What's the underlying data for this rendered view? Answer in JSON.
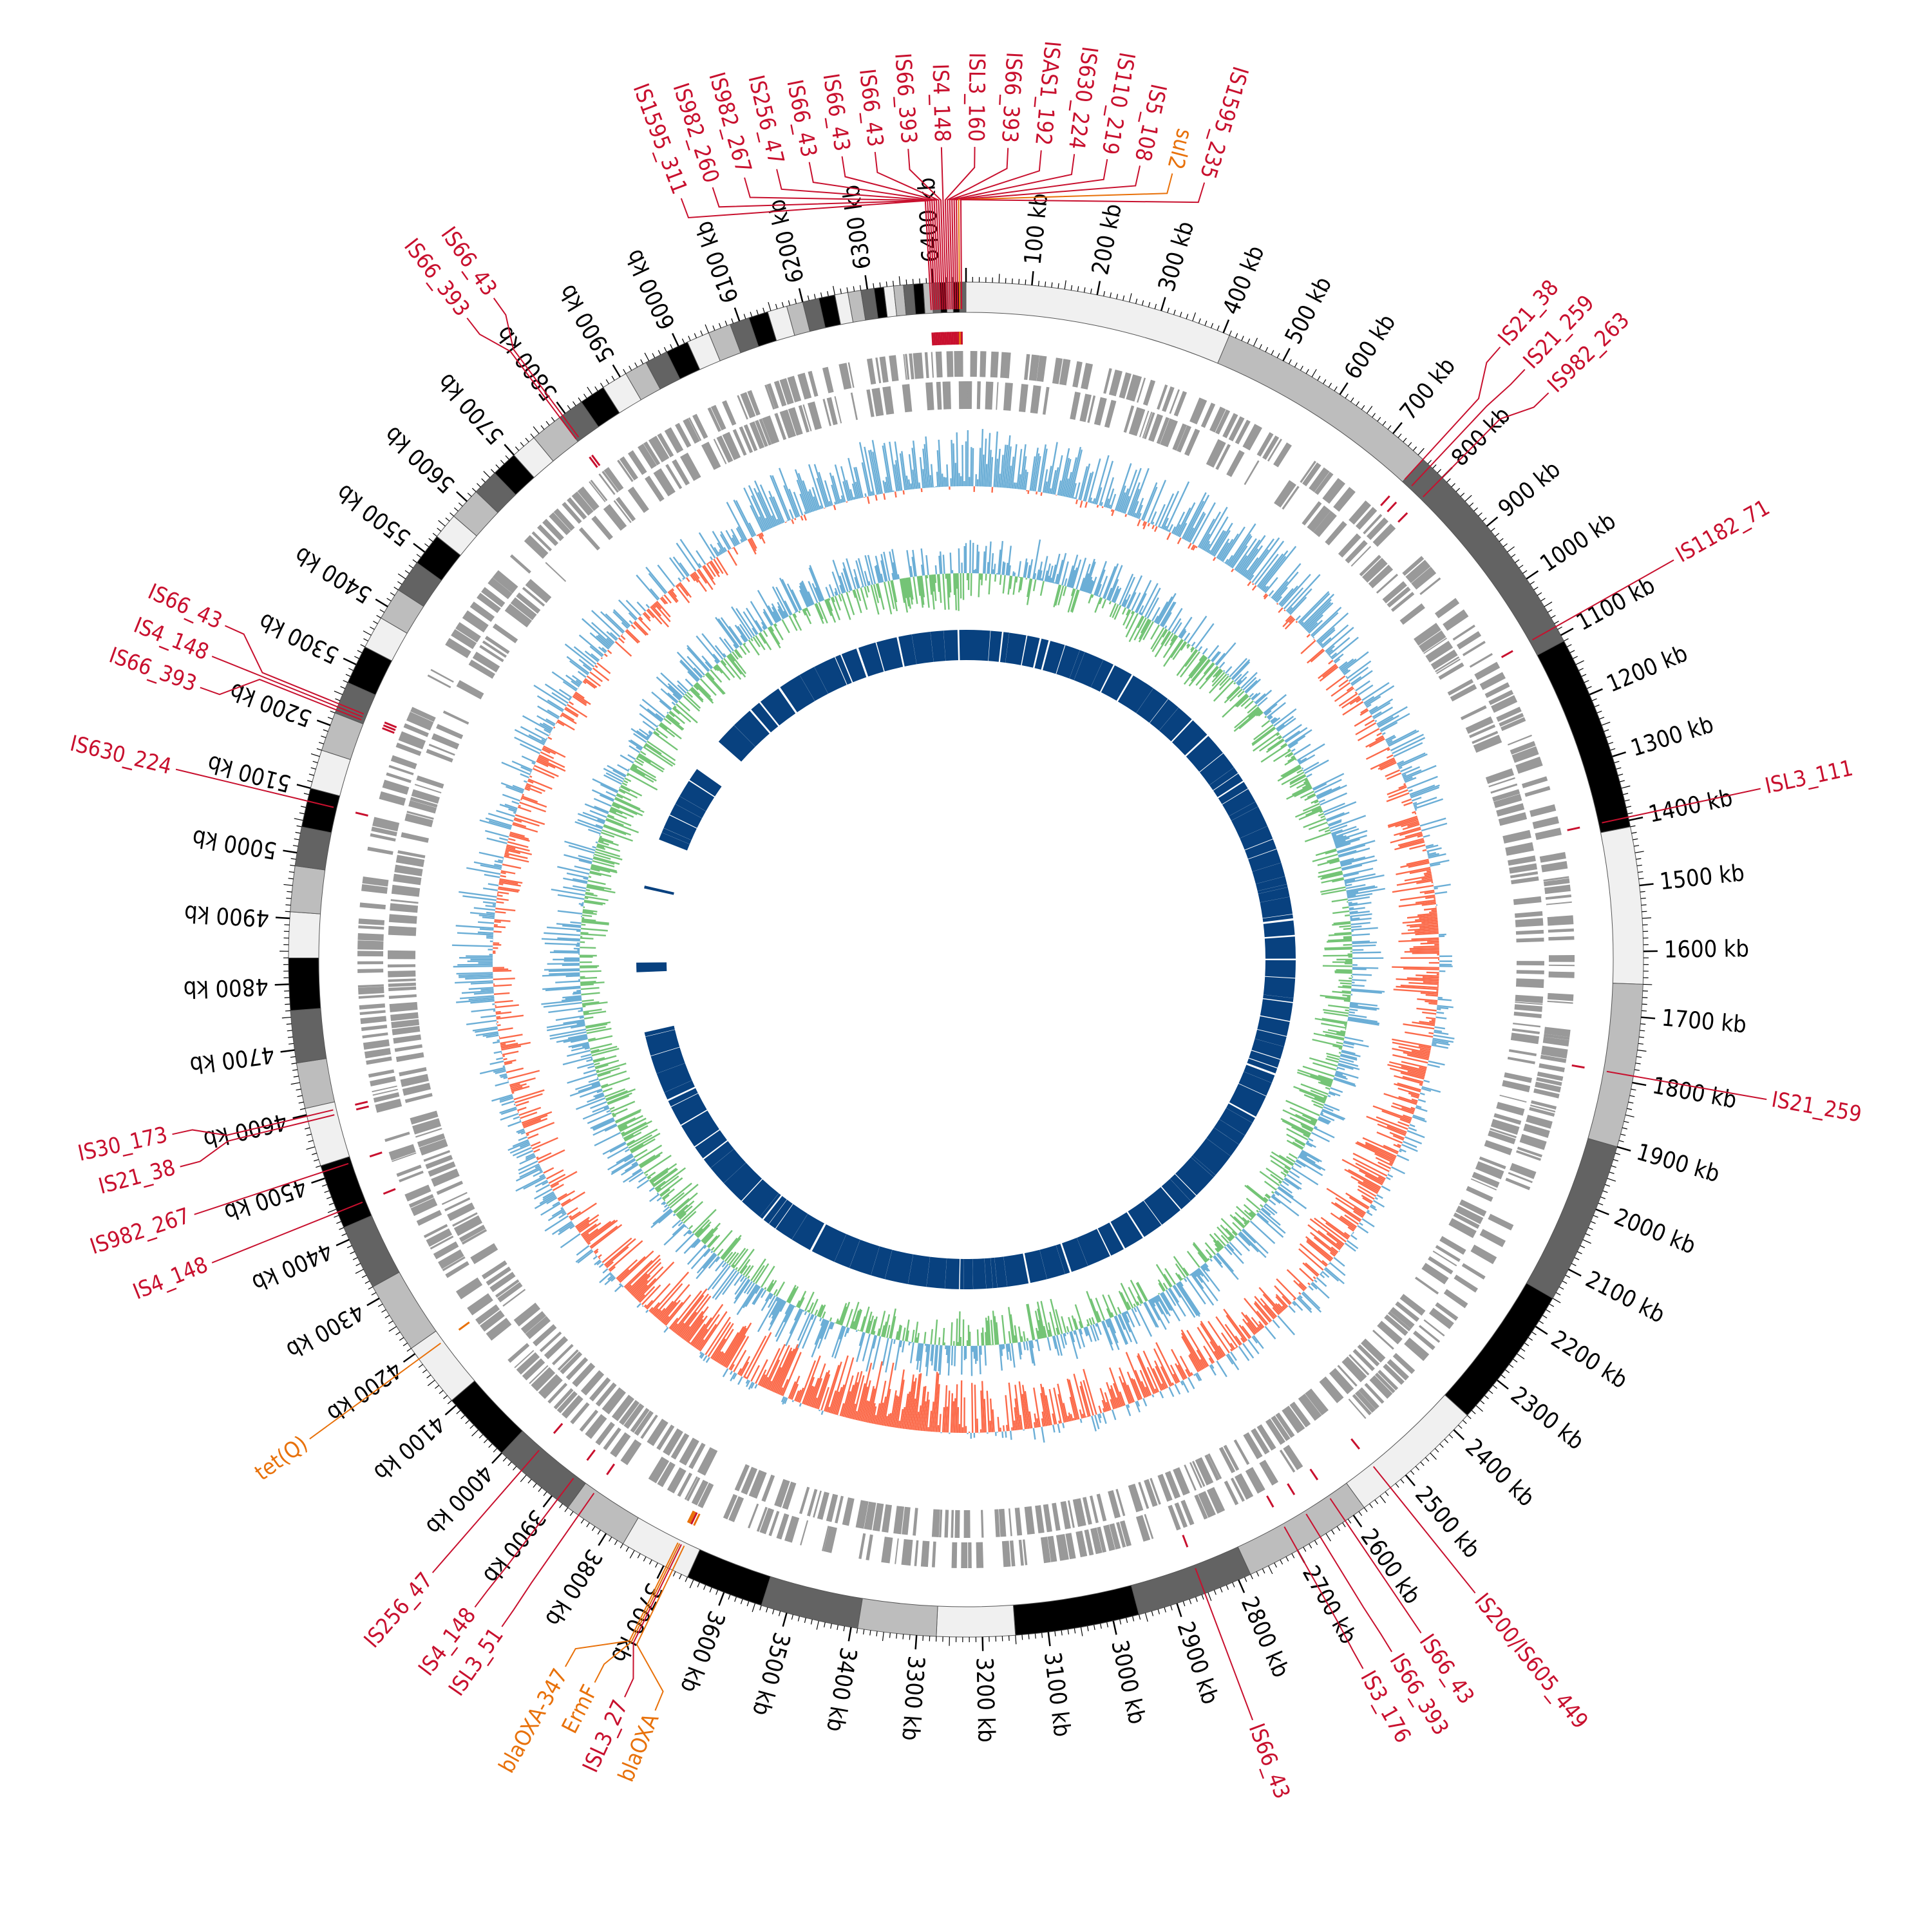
{
  "genome": {
    "length_kb": 6450,
    "tick_labels": [
      "100 kb",
      "200 kb",
      "300 kb",
      "400 kb",
      "500 kb",
      "600 kb",
      "700 kb",
      "800 kb",
      "900 kb",
      "1000 kb",
      "1100 kb",
      "1200 kb",
      "1300 kb",
      "1400 kb",
      "1500 kb",
      "1600 kb",
      "1700 kb",
      "1800 kb",
      "1900 kb",
      "2000 kb",
      "2100 kb",
      "2200 kb",
      "2300 kb",
      "2400 kb",
      "2500 kb",
      "2600 kb",
      "2700 kb",
      "2800 kb",
      "2900 kb",
      "3000 kb",
      "3100 kb",
      "3200 kb",
      "3300 kb",
      "3400 kb",
      "3500 kb",
      "3600 kb",
      "3700 kb",
      "3800 kb",
      "3900 kb",
      "4000 kb",
      "4100 kb",
      "4200 kb",
      "4300 kb",
      "4400 kb",
      "4500 kb",
      "4600 kb",
      "4700 kb",
      "4800 kb",
      "4900 kb",
      "5000 kb",
      "5100 kb",
      "5200 kb",
      "5300 kb",
      "5400 kb",
      "5500 kb",
      "5600 kb",
      "5700 kb",
      "5800 kb",
      "5900 kb",
      "6000 kb",
      "6100 kb",
      "6200 kb",
      "6300 kb",
      "6400 kb"
    ]
  },
  "colors": {
    "is_label": "#c8102e",
    "arg_label": "#e8710a",
    "gc_skew_pos": "#6baed6",
    "gc_skew_neg": "#fb6a4a",
    "gc_content_pos": "#74c476",
    "gc_content_neg": "#6baed6",
    "inner_blocks": "#08417f",
    "cds": "#999999",
    "ideogram_edge": "#555555"
  },
  "contigs": [
    {
      "start": 0,
      "end": 410,
      "shade": "#f0f0f0"
    },
    {
      "start": 410,
      "end": 760,
      "shade": "#bdbdbd"
    },
    {
      "start": 760,
      "end": 1110,
      "shade": "#636363"
    },
    {
      "start": 1110,
      "end": 1410,
      "shade": "#000000"
    },
    {
      "start": 1410,
      "end": 1650,
      "shade": "#f0f0f0"
    },
    {
      "start": 1650,
      "end": 1900,
      "shade": "#bdbdbd"
    },
    {
      "start": 1900,
      "end": 2150,
      "shade": "#636363"
    },
    {
      "start": 2150,
      "end": 2370,
      "shade": "#000000"
    },
    {
      "start": 2370,
      "end": 2580,
      "shade": "#f0f0f0"
    },
    {
      "start": 2580,
      "end": 2780,
      "shade": "#bdbdbd"
    },
    {
      "start": 2780,
      "end": 2960,
      "shade": "#636363"
    },
    {
      "start": 2960,
      "end": 3150,
      "shade": "#000000"
    },
    {
      "start": 3150,
      "end": 3270,
      "shade": "#f0f0f0"
    },
    {
      "start": 3270,
      "end": 3390,
      "shade": "#bdbdbd"
    },
    {
      "start": 3390,
      "end": 3540,
      "shade": "#636363"
    },
    {
      "start": 3540,
      "end": 3660,
      "shade": "#000000"
    },
    {
      "start": 3660,
      "end": 3770,
      "shade": "#f0f0f0"
    },
    {
      "start": 3770,
      "end": 3870,
      "shade": "#bdbdbd"
    },
    {
      "start": 3870,
      "end": 4000,
      "shade": "#636363"
    },
    {
      "start": 4000,
      "end": 4110,
      "shade": "#000000"
    },
    {
      "start": 4110,
      "end": 4210,
      "shade": "#f0f0f0"
    },
    {
      "start": 4210,
      "end": 4320,
      "shade": "#bdbdbd"
    },
    {
      "start": 4320,
      "end": 4420,
      "shade": "#636363"
    },
    {
      "start": 4420,
      "end": 4520,
      "shade": "#000000"
    },
    {
      "start": 4520,
      "end": 4610,
      "shade": "#f0f0f0"
    },
    {
      "start": 4610,
      "end": 4680,
      "shade": "#bdbdbd"
    },
    {
      "start": 4680,
      "end": 4760,
      "shade": "#636363"
    },
    {
      "start": 4760,
      "end": 4840,
      "shade": "#000000"
    },
    {
      "start": 4840,
      "end": 4910,
      "shade": "#f0f0f0"
    },
    {
      "start": 4910,
      "end": 4980,
      "shade": "#bdbdbd"
    },
    {
      "start": 4980,
      "end": 5040,
      "shade": "#636363"
    },
    {
      "start": 5040,
      "end": 5100,
      "shade": "#000000"
    },
    {
      "start": 5100,
      "end": 5160,
      "shade": "#f0f0f0"
    },
    {
      "start": 5160,
      "end": 5220,
      "shade": "#bdbdbd"
    },
    {
      "start": 5220,
      "end": 5270,
      "shade": "#636363"
    },
    {
      "start": 5270,
      "end": 5330,
      "shade": "#000000"
    },
    {
      "start": 5330,
      "end": 5380,
      "shade": "#f0f0f0"
    },
    {
      "start": 5380,
      "end": 5430,
      "shade": "#bdbdbd"
    },
    {
      "start": 5430,
      "end": 5480,
      "shade": "#636363"
    },
    {
      "start": 5480,
      "end": 5530,
      "shade": "#000000"
    },
    {
      "start": 5530,
      "end": 5570,
      "shade": "#f0f0f0"
    },
    {
      "start": 5570,
      "end": 5620,
      "shade": "#bdbdbd"
    },
    {
      "start": 5620,
      "end": 5660,
      "shade": "#636363"
    },
    {
      "start": 5660,
      "end": 5700,
      "shade": "#000000"
    },
    {
      "start": 5700,
      "end": 5740,
      "shade": "#f0f0f0"
    },
    {
      "start": 5740,
      "end": 5790,
      "shade": "#bdbdbd"
    },
    {
      "start": 5790,
      "end": 5830,
      "shade": "#636363"
    },
    {
      "start": 5830,
      "end": 5870,
      "shade": "#000000"
    },
    {
      "start": 5870,
      "end": 5910,
      "shade": "#f0f0f0"
    },
    {
      "start": 5910,
      "end": 5945,
      "shade": "#bdbdbd"
    },
    {
      "start": 5945,
      "end": 5980,
      "shade": "#636363"
    },
    {
      "start": 5980,
      "end": 6015,
      "shade": "#000000"
    },
    {
      "start": 6015,
      "end": 6050,
      "shade": "#f0f0f0"
    },
    {
      "start": 6050,
      "end": 6085,
      "shade": "#bdbdbd"
    },
    {
      "start": 6085,
      "end": 6115,
      "shade": "#636363"
    },
    {
      "start": 6115,
      "end": 6145,
      "shade": "#000000"
    },
    {
      "start": 6145,
      "end": 6175,
      "shade": "#f0f0f0"
    },
    {
      "start": 6175,
      "end": 6200,
      "shade": "#bdbdbd"
    },
    {
      "start": 6200,
      "end": 6225,
      "shade": "#636363"
    },
    {
      "start": 6225,
      "end": 6250,
      "shade": "#000000"
    },
    {
      "start": 6250,
      "end": 6270,
      "shade": "#f0f0f0"
    },
    {
      "start": 6270,
      "end": 6290,
      "shade": "#bdbdbd"
    },
    {
      "start": 6290,
      "end": 6310,
      "shade": "#636363"
    },
    {
      "start": 6310,
      "end": 6325,
      "shade": "#000000"
    },
    {
      "start": 6325,
      "end": 6340,
      "shade": "#f0f0f0"
    },
    {
      "start": 6340,
      "end": 6355,
      "shade": "#bdbdbd"
    },
    {
      "start": 6355,
      "end": 6370,
      "shade": "#636363"
    },
    {
      "start": 6370,
      "end": 6385,
      "shade": "#000000"
    },
    {
      "start": 6385,
      "end": 6398,
      "shade": "#bdbdbd"
    },
    {
      "start": 6398,
      "end": 6410,
      "shade": "#636363"
    },
    {
      "start": 6410,
      "end": 6420,
      "shade": "#000000"
    },
    {
      "start": 6420,
      "end": 6430,
      "shade": "#bdbdbd"
    },
    {
      "start": 6430,
      "end": 6440,
      "shade": "#000000"
    },
    {
      "start": 6440,
      "end": 6450,
      "shade": "#636363"
    }
  ],
  "features": [
    {
      "label": "IS1595_311",
      "pos": 6395,
      "type": "IS"
    },
    {
      "label": "IS982_260",
      "pos": 6398,
      "type": "IS"
    },
    {
      "label": "IS982_267",
      "pos": 6401,
      "type": "IS"
    },
    {
      "label": "IS256_47",
      "pos": 6404,
      "type": "IS"
    },
    {
      "label": "IS66_43",
      "pos": 6407,
      "type": "IS"
    },
    {
      "label": "IS66_43",
      "pos": 6410,
      "type": "IS"
    },
    {
      "label": "IS66_43",
      "pos": 6413,
      "type": "IS"
    },
    {
      "label": "IS66_393",
      "pos": 6416,
      "type": "IS"
    },
    {
      "label": "IS4_148",
      "pos": 6419,
      "type": "IS"
    },
    {
      "label": "ISL3_160",
      "pos": 6422,
      "type": "IS"
    },
    {
      "label": "IS66_393",
      "pos": 6425,
      "type": "IS"
    },
    {
      "label": "ISAS1_192",
      "pos": 6428,
      "type": "IS"
    },
    {
      "label": "IS630_224",
      "pos": 6431,
      "type": "IS"
    },
    {
      "label": "IS110_219",
      "pos": 6434,
      "type": "IS"
    },
    {
      "label": "IS5_108",
      "pos": 6437,
      "type": "IS"
    },
    {
      "label": "sul2",
      "pos": 6440,
      "type": "ARG"
    },
    {
      "label": "IS1595_235",
      "pos": 6443,
      "type": "IS"
    },
    {
      "label": "IS21_38",
      "pos": 760,
      "type": "IS"
    },
    {
      "label": "IS21_259",
      "pos": 775,
      "type": "IS"
    },
    {
      "label": "IS982_263",
      "pos": 800,
      "type": "IS"
    },
    {
      "label": "IS1182_71",
      "pos": 1085,
      "type": "IS"
    },
    {
      "label": "ISL3_111",
      "pos": 1395,
      "type": "IS"
    },
    {
      "label": "IS21_259",
      "pos": 1790,
      "type": "IS"
    },
    {
      "label": "IS200/IS605_449",
      "pos": 2530,
      "type": "IS"
    },
    {
      "label": "IS66_43",
      "pos": 2615,
      "type": "IS"
    },
    {
      "label": "IS66_393",
      "pos": 2660,
      "type": "IS"
    },
    {
      "label": "IS3_176",
      "pos": 2700,
      "type": "IS"
    },
    {
      "label": "IS66_43",
      "pos": 2855,
      "type": "IS"
    },
    {
      "label": "blaOXA",
      "pos": 3685,
      "type": "ARG"
    },
    {
      "label": "ISL3_27",
      "pos": 3690,
      "type": "IS"
    },
    {
      "label": "ErmF",
      "pos": 3693,
      "type": "ARG"
    },
    {
      "label": "blaOXA-347",
      "pos": 3696,
      "type": "ARG"
    },
    {
      "label": "ISL3_51",
      "pos": 3850,
      "type": "IS"
    },
    {
      "label": "IS4_148",
      "pos": 3890,
      "type": "IS"
    },
    {
      "label": "IS256_47",
      "pos": 3960,
      "type": "IS"
    },
    {
      "label": "tet(Q)",
      "pos": 4190,
      "type": "ARG"
    },
    {
      "label": "IS4_148",
      "pos": 4445,
      "type": "IS"
    },
    {
      "label": "IS982_267",
      "pos": 4510,
      "type": "IS"
    },
    {
      "label": "IS21_38",
      "pos": 4590,
      "type": "IS"
    },
    {
      "label": "IS30_173",
      "pos": 4598,
      "type": "IS"
    },
    {
      "label": "IS630_224",
      "pos": 5080,
      "type": "IS"
    },
    {
      "label": "IS66_393",
      "pos": 5225,
      "type": "IS"
    },
    {
      "label": "IS4_148",
      "pos": 5230,
      "type": "IS"
    },
    {
      "label": "IS66_43",
      "pos": 5235,
      "type": "IS"
    },
    {
      "label": "IS66_393",
      "pos": 5790,
      "type": "IS"
    },
    {
      "label": "IS66_43",
      "pos": 5795,
      "type": "IS"
    }
  ],
  "inner_gaps": [
    {
      "start": 4650,
      "end": 4700
    },
    {
      "start": 4710,
      "end": 4790
    },
    {
      "start": 4850,
      "end": 4900
    },
    {
      "start": 4920,
      "end": 5060
    },
    {
      "start": 5090,
      "end": 5210
    },
    {
      "start": 5500,
      "end": 5520
    },
    {
      "start": 6180,
      "end": 6230
    }
  ]
}
